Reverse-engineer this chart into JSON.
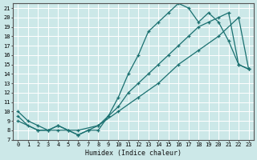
{
  "xlabel": "Humidex (Indice chaleur)",
  "ylabel": "",
  "bg_color": "#cce8e8",
  "grid_color": "#ffffff",
  "line_color": "#1a7070",
  "xlim": [
    -0.5,
    23.5
  ],
  "ylim": [
    7,
    21.5
  ],
  "yticks": [
    7,
    8,
    9,
    10,
    11,
    12,
    13,
    14,
    15,
    16,
    17,
    18,
    19,
    20,
    21
  ],
  "xticks": [
    0,
    1,
    2,
    3,
    4,
    5,
    6,
    7,
    8,
    9,
    10,
    11,
    12,
    13,
    14,
    15,
    16,
    17,
    18,
    19,
    20,
    21,
    22,
    23
  ],
  "line1_x": [
    0,
    1,
    2,
    3,
    4,
    5,
    6,
    7,
    8,
    9,
    10,
    11,
    12,
    13,
    14,
    15,
    16,
    17,
    18,
    19,
    20,
    21,
    22,
    23
  ],
  "line1_y": [
    10,
    9,
    8.5,
    8,
    8.5,
    8,
    7.5,
    8,
    8,
    9.5,
    11.5,
    14,
    16,
    18.5,
    19.5,
    20.5,
    21.5,
    21,
    19.5,
    20.5,
    19.5,
    17.5,
    15,
    14.5
  ],
  "line2_x": [
    0,
    1,
    2,
    3,
    4,
    5,
    6,
    7,
    8,
    9,
    10,
    11,
    12,
    13,
    14,
    15,
    16,
    17,
    18,
    19,
    20,
    21,
    22,
    23
  ],
  "line2_y": [
    9.5,
    8.5,
    8,
    8,
    8.5,
    8,
    7.5,
    8,
    8.5,
    9.5,
    10.5,
    12,
    13,
    14,
    15,
    16,
    17,
    18,
    19,
    19.5,
    20,
    20.5,
    15,
    14.5
  ],
  "line3_x": [
    0,
    2,
    4,
    6,
    8,
    10,
    12,
    14,
    16,
    18,
    20,
    22,
    23
  ],
  "line3_y": [
    9,
    8,
    8,
    8,
    8.5,
    10,
    11.5,
    13,
    15,
    16.5,
    18,
    20,
    14.5
  ]
}
